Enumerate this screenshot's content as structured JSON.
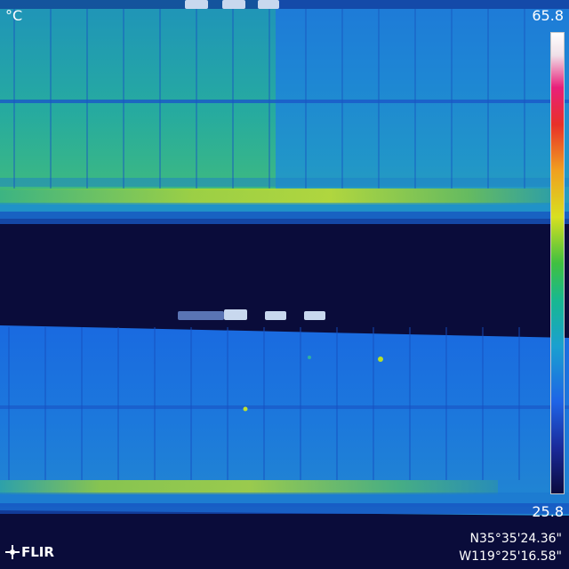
{
  "image": {
    "kind": "aerial thermal infrared view of two rows of solar panels",
    "palette": "rainbow"
  },
  "overlay": {
    "unit": "°C",
    "scale_max": "65.8",
    "scale_min": "25.8",
    "logo": "FLIR",
    "gps_lat": "N35°35'24.36\"",
    "gps_lon": "W119°25'16.58\""
  },
  "palette_colors": [
    "#0a0a3c",
    "#1a2a9a",
    "#1e64e6",
    "#1aa0d0",
    "#18b890",
    "#40c040",
    "#d8e020",
    "#f0a020",
    "#e83028",
    "#e8207a",
    "#f0e0e8",
    "#ffffff"
  ]
}
